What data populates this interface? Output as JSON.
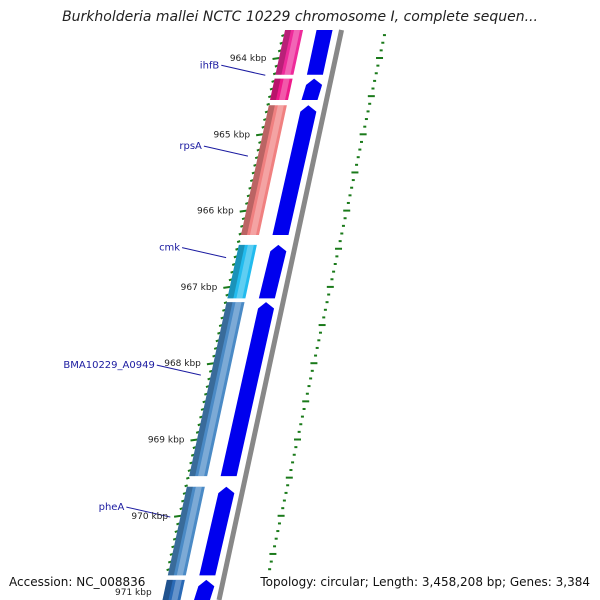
{
  "title": "Burkholderia mallei NCTC 10229 chromosome I, complete sequen...",
  "footer": {
    "accession": "Accession: NC_008836",
    "summary": "Topology: circular; Length: 3,458,208 bp; Genes: 3,384"
  },
  "ticks": [
    {
      "kbp": 964,
      "label": "964 kbp"
    },
    {
      "kbp": 965,
      "label": "965 kbp"
    },
    {
      "kbp": 966,
      "label": "966 kbp"
    },
    {
      "kbp": 967,
      "label": "967 kbp"
    },
    {
      "kbp": 968,
      "label": "968 kbp"
    },
    {
      "kbp": 969,
      "label": "969 kbp"
    },
    {
      "kbp": 970,
      "label": "970 kbp"
    },
    {
      "kbp": 971,
      "label": "971 kbp"
    }
  ],
  "genes": [
    {
      "name": "",
      "start": 963.6,
      "end": 964.22,
      "color": "#ee2a9a"
    },
    {
      "name": "ihfB",
      "start": 964.27,
      "end": 964.55,
      "color": "#ee1a8a"
    },
    {
      "name": "rpsA",
      "start": 964.62,
      "end": 966.32,
      "color": "#f08080"
    },
    {
      "name": "cmk",
      "start": 966.45,
      "end": 967.15,
      "color": "#22bbee"
    },
    {
      "name": "BMA10229_A0949",
      "start": 967.2,
      "end": 969.48,
      "color": "#4a8ac6"
    },
    {
      "name": "pheA",
      "start": 969.62,
      "end": 970.78,
      "color": "#4a8ac6"
    },
    {
      "name": "",
      "start": 970.84,
      "end": 971.2,
      "color": "#2a6ab6"
    }
  ],
  "cds": [
    {
      "start": 963.6,
      "end": 964.22
    },
    {
      "start": 964.27,
      "end": 964.55
    },
    {
      "start": 964.62,
      "end": 966.32
    },
    {
      "start": 966.45,
      "end": 967.15
    },
    {
      "start": 967.2,
      "end": 969.48
    },
    {
      "start": 969.62,
      "end": 970.78
    },
    {
      "start": 970.84,
      "end": 971.2
    }
  ],
  "colors": {
    "cds": "#0000ee",
    "tick": "#1a7a1a",
    "backbone": "#888888",
    "label_line": "#1a1aa0"
  }
}
